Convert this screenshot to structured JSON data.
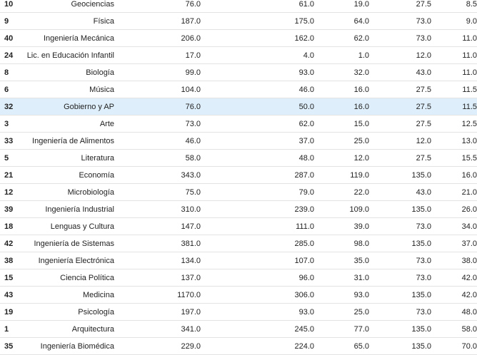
{
  "table": {
    "selected_row_index": 6,
    "rows": [
      {
        "id": "10",
        "name": "Geociencias",
        "v1": "76.0",
        "v2": "61.0",
        "v3": "19.0",
        "v4": "27.5",
        "v5": "8.5"
      },
      {
        "id": "9",
        "name": "Física",
        "v1": "187.0",
        "v2": "175.0",
        "v3": "64.0",
        "v4": "73.0",
        "v5": "9.0"
      },
      {
        "id": "40",
        "name": "Ingeniería Mecánica",
        "v1": "206.0",
        "v2": "162.0",
        "v3": "62.0",
        "v4": "73.0",
        "v5": "11.0"
      },
      {
        "id": "24",
        "name": "Lic. en Educación Infantil",
        "v1": "17.0",
        "v2": "4.0",
        "v3": "1.0",
        "v4": "12.0",
        "v5": "11.0"
      },
      {
        "id": "8",
        "name": "Biología",
        "v1": "99.0",
        "v2": "93.0",
        "v3": "32.0",
        "v4": "43.0",
        "v5": "11.0"
      },
      {
        "id": "6",
        "name": "Música",
        "v1": "104.0",
        "v2": "46.0",
        "v3": "16.0",
        "v4": "27.5",
        "v5": "11.5"
      },
      {
        "id": "32",
        "name": "Gobierno y AP",
        "v1": "76.0",
        "v2": "50.0",
        "v3": "16.0",
        "v4": "27.5",
        "v5": "11.5"
      },
      {
        "id": "3",
        "name": "Arte",
        "v1": "73.0",
        "v2": "62.0",
        "v3": "15.0",
        "v4": "27.5",
        "v5": "12.5"
      },
      {
        "id": "33",
        "name": "Ingeniería de Alimentos",
        "v1": "46.0",
        "v2": "37.0",
        "v3": "25.0",
        "v4": "12.0",
        "v5": "13.0"
      },
      {
        "id": "5",
        "name": "Literatura",
        "v1": "58.0",
        "v2": "48.0",
        "v3": "12.0",
        "v4": "27.5",
        "v5": "15.5"
      },
      {
        "id": "21",
        "name": "Economía",
        "v1": "343.0",
        "v2": "287.0",
        "v3": "119.0",
        "v4": "135.0",
        "v5": "16.0"
      },
      {
        "id": "12",
        "name": "Microbiología",
        "v1": "75.0",
        "v2": "79.0",
        "v3": "22.0",
        "v4": "43.0",
        "v5": "21.0"
      },
      {
        "id": "39",
        "name": "Ingeniería Industrial",
        "v1": "310.0",
        "v2": "239.0",
        "v3": "109.0",
        "v4": "135.0",
        "v5": "26.0"
      },
      {
        "id": "18",
        "name": "Lenguas y Cultura",
        "v1": "147.0",
        "v2": "111.0",
        "v3": "39.0",
        "v4": "73.0",
        "v5": "34.0"
      },
      {
        "id": "42",
        "name": "Ingeniería de Sistemas",
        "v1": "381.0",
        "v2": "285.0",
        "v3": "98.0",
        "v4": "135.0",
        "v5": "37.0"
      },
      {
        "id": "38",
        "name": "Ingeniería Electrónica",
        "v1": "134.0",
        "v2": "107.0",
        "v3": "35.0",
        "v4": "73.0",
        "v5": "38.0"
      },
      {
        "id": "15",
        "name": "Ciencia Política",
        "v1": "137.0",
        "v2": "96.0",
        "v3": "31.0",
        "v4": "73.0",
        "v5": "42.0"
      },
      {
        "id": "43",
        "name": "Medicina",
        "v1": "1170.0",
        "v2": "306.0",
        "v3": "93.0",
        "v4": "135.0",
        "v5": "42.0"
      },
      {
        "id": "19",
        "name": "Psicología",
        "v1": "197.0",
        "v2": "93.0",
        "v3": "25.0",
        "v4": "73.0",
        "v5": "48.0"
      },
      {
        "id": "1",
        "name": "Arquitectura",
        "v1": "341.0",
        "v2": "245.0",
        "v3": "77.0",
        "v4": "135.0",
        "v5": "58.0"
      },
      {
        "id": "35",
        "name": "Ingeniería Biomédica",
        "v1": "229.0",
        "v2": "224.0",
        "v3": "65.0",
        "v4": "135.0",
        "v5": "70.0"
      }
    ]
  }
}
